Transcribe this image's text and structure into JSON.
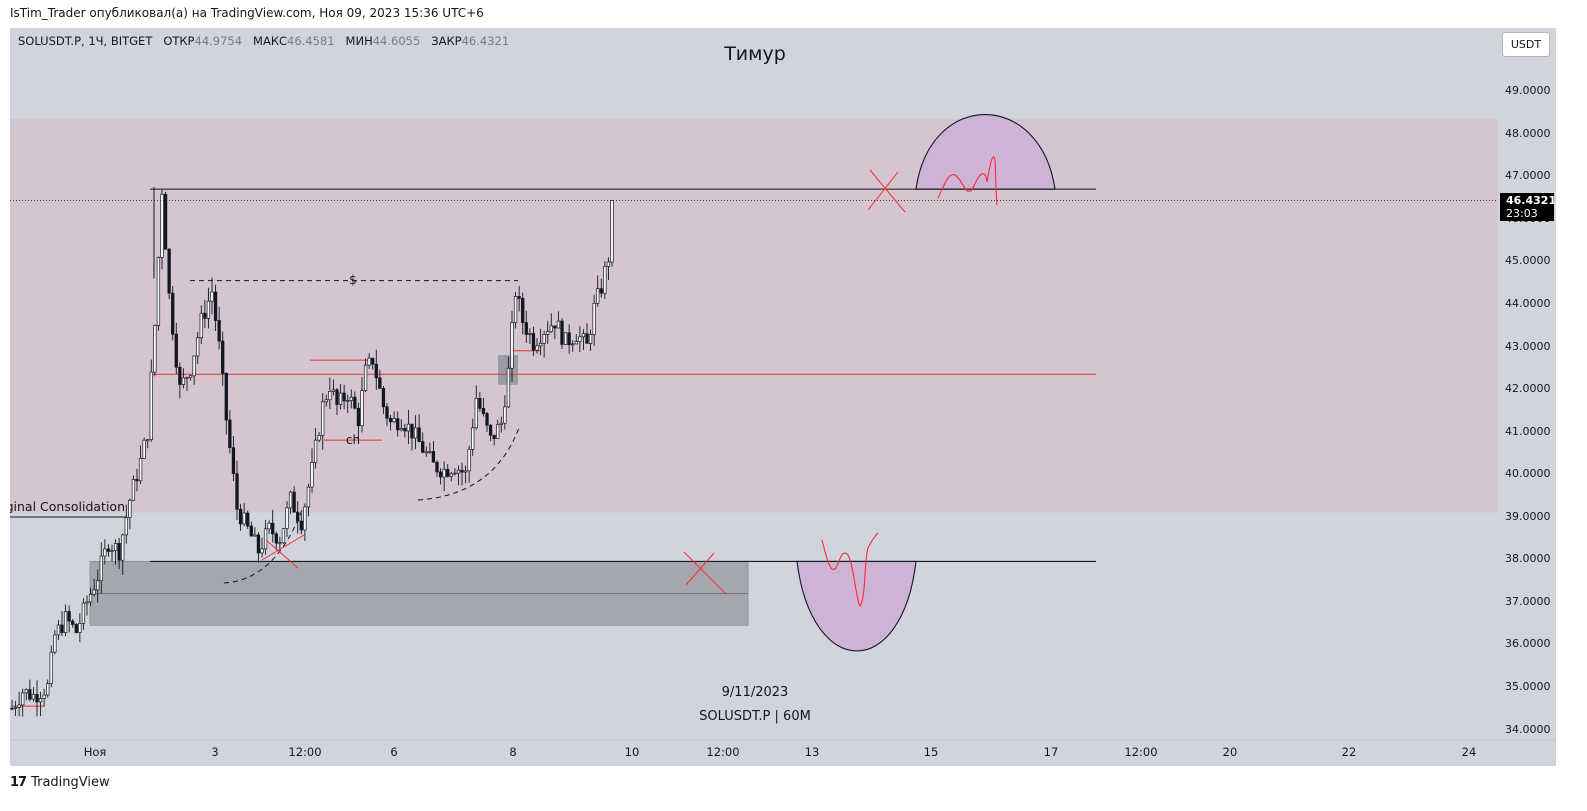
{
  "header": {
    "publish_line": "IsTim_Trader опубликовал(а) на TradingView.com, Ноя 09, 2023 15:36 UTC+6"
  },
  "symbol_bar": {
    "symbol": "SOLUSDT.P, 1Ч, BITGET",
    "open_label": "ОТКР",
    "open": "44.9754",
    "high_label": "МАКС",
    "high": "46.4581",
    "low_label": "МИН",
    "low": "44.6055",
    "close_label": "ЗАКР",
    "close": "46.4321"
  },
  "title": "Тимур",
  "unit_button": "USDT",
  "price_tag": {
    "price": "46.4321",
    "timer": "23:03"
  },
  "watermark": {
    "date": "9/11/2023",
    "symbol": "SOLUSDT.P | 60M"
  },
  "annotations": {
    "zone_label": "Original Consolidation",
    "liquidity_mark": "$",
    "choch_mark": "ch"
  },
  "footer": {
    "brand": "TradingView",
    "logo": "tradingview-logo-icon"
  },
  "colors": {
    "background": "#d1d4dc",
    "zone_pink": "#d4c5d0",
    "zone_gray": "#a4a7ae",
    "drawing_red": "#ff2b2b",
    "projection_purple": "#cdb3d6"
  },
  "chart_data": {
    "type": "candlestick",
    "title": "Тимур",
    "y_axis": {
      "ticks": [
        34,
        35,
        36,
        37,
        38,
        39,
        40,
        41,
        42,
        43,
        44,
        45,
        46,
        47,
        48,
        49
      ],
      "range": [
        33.8,
        50.5
      ],
      "side": "right",
      "decimals": 4
    },
    "x_axis": {
      "ticks": [
        "Ноя",
        "3",
        "12:00",
        "6",
        "8",
        "10",
        "12:00",
        "13",
        "15",
        "17",
        "12:00",
        "20",
        "22",
        "24"
      ]
    },
    "last_price": 46.4321,
    "close_path": [
      [
        0,
        34.5
      ],
      [
        3,
        34.9
      ],
      [
        6,
        34.8
      ],
      [
        10,
        35.0
      ],
      [
        12,
        36.2
      ],
      [
        15,
        36.6
      ],
      [
        18,
        36.3
      ],
      [
        21,
        37.0
      ],
      [
        24,
        37.6
      ],
      [
        27,
        38.4
      ],
      [
        30,
        38.2
      ],
      [
        33,
        39.4
      ],
      [
        36,
        40.3
      ],
      [
        38,
        41.0
      ],
      [
        40,
        43.5
      ],
      [
        42,
        46.7
      ],
      [
        44,
        44.2
      ],
      [
        47,
        42.0
      ],
      [
        50,
        42.5
      ],
      [
        53,
        43.6
      ],
      [
        56,
        44.3
      ],
      [
        58,
        43.0
      ],
      [
        60,
        41.3
      ],
      [
        63,
        39.2
      ],
      [
        66,
        38.7
      ],
      [
        69,
        38.2
      ],
      [
        72,
        38.7
      ],
      [
        75,
        38.5
      ],
      [
        78,
        39.4
      ],
      [
        81,
        38.9
      ],
      [
        84,
        40.1
      ],
      [
        87,
        41.6
      ],
      [
        89,
        42.1
      ],
      [
        91,
        41.6
      ],
      [
        94,
        41.9
      ],
      [
        97,
        41.3
      ],
      [
        99,
        42.4
      ],
      [
        101,
        42.7
      ],
      [
        104,
        41.6
      ],
      [
        106,
        41.2
      ],
      [
        109,
        41.3
      ],
      [
        112,
        41.0
      ],
      [
        115,
        40.6
      ],
      [
        118,
        40.2
      ],
      [
        121,
        40.1
      ],
      [
        124,
        40.2
      ],
      [
        127,
        40.0
      ],
      [
        130,
        41.8
      ],
      [
        132,
        41.3
      ],
      [
        134,
        40.8
      ],
      [
        137,
        41.2
      ],
      [
        139,
        42.4
      ],
      [
        141,
        44.3
      ],
      [
        143,
        43.6
      ],
      [
        146,
        43.1
      ],
      [
        149,
        43.4
      ],
      [
        152,
        43.6
      ],
      [
        155,
        43.1
      ],
      [
        158,
        43.3
      ],
      [
        161,
        43.0
      ],
      [
        163,
        43.9
      ],
      [
        165,
        44.4
      ],
      [
        167,
        45.1
      ],
      [
        168,
        46.43
      ]
    ],
    "levels": [
      {
        "name": "range-high",
        "price": 46.7
      },
      {
        "name": "range-mid",
        "price": 42.35
      },
      {
        "name": "range-low",
        "price": 37.95
      },
      {
        "name": "liquidity-equal-highs",
        "price": 44.55
      },
      {
        "name": "choch-level",
        "price": 40.8
      }
    ],
    "zones": [
      {
        "name": "premium-range-box",
        "from": 39.1,
        "to": 48.35
      },
      {
        "name": "original-consolidation-box",
        "from": 36.45,
        "to": 37.95
      }
    ],
    "projections": [
      {
        "name": "bullish-projection",
        "base": 46.7,
        "peak": 48.45
      },
      {
        "name": "bearish-projection",
        "base": 37.95,
        "trough": 35.85
      }
    ]
  }
}
